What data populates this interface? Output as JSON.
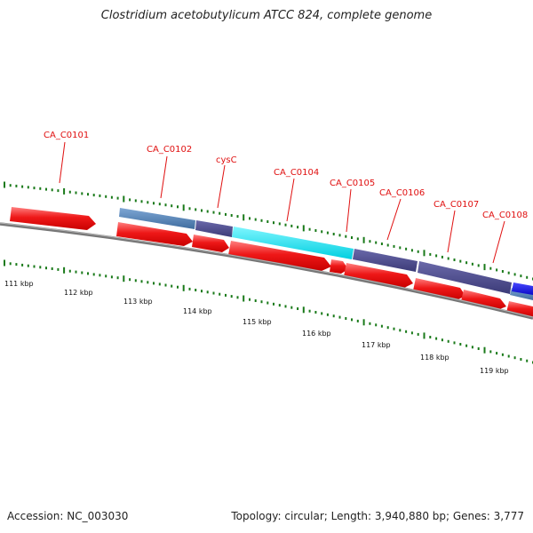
{
  "title": "Clostridium acetobutylicum ATCC 824, complete genome",
  "footer": {
    "accession": "Accession: NC_003030",
    "summary": "Topology: circular; Length: 3,940,880 bp; Genes: 3,777"
  },
  "colors": {
    "cds_forward": "#e81010",
    "cds_forward_light": "#ff7070",
    "ticks": "#1a7a1a",
    "backbone": "#777777",
    "label": "#e01010",
    "feature_steelblue": "#4f7fb5",
    "feature_purple": "#4b4a8c",
    "feature_cyan": "#00e0f0",
    "feature_blue": "#1010e0"
  },
  "scale": {
    "labels": [
      "111 kbp",
      "112 kbp",
      "113 kbp",
      "114 kbp",
      "115 kbp",
      "116 kbp",
      "117 kbp",
      "118 kbp",
      "119 kbp"
    ]
  },
  "gene_labels": [
    "CA_C0101",
    "CA_C0102",
    "cysC",
    "CA_C0104",
    "CA_C0105",
    "CA_C0106",
    "CA_C0107",
    "CA_C0108"
  ]
}
